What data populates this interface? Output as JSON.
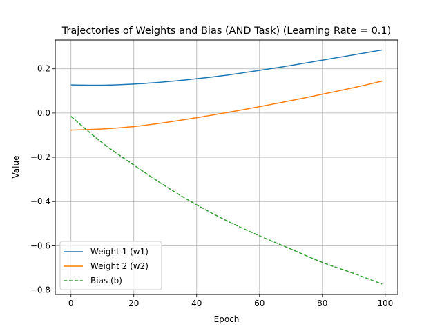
{
  "chart_data": {
    "type": "line",
    "title": "Trajectories of Weights and Bias (AND Task) (Learning Rate = 0.1)",
    "xlabel": "Epoch",
    "ylabel": "Value",
    "xlim": [
      -5,
      104
    ],
    "ylim": [
      -0.82,
      0.33
    ],
    "xticks": [
      0,
      20,
      40,
      60,
      80,
      100
    ],
    "xtick_labels": [
      "0",
      "20",
      "40",
      "60",
      "80",
      "100"
    ],
    "yticks": [
      -0.8,
      -0.6,
      -0.4,
      -0.2,
      0.0,
      0.2
    ],
    "ytick_labels": [
      "−0.8",
      "−0.6",
      "−0.4",
      "−0.2",
      "0.0",
      "0.2"
    ],
    "grid": true,
    "legend_position": "lower-left",
    "x": [
      0,
      10,
      20,
      30,
      40,
      50,
      60,
      70,
      80,
      90,
      99
    ],
    "series": [
      {
        "name": "Weight 1 (w1)",
        "color": "#1f77b4",
        "linestyle": "solid",
        "values": [
          0.127,
          0.126,
          0.131,
          0.141,
          0.155,
          0.172,
          0.193,
          0.215,
          0.239,
          0.263,
          0.285
        ]
      },
      {
        "name": "Weight 2 (w2)",
        "color": "#ff7f0e",
        "linestyle": "solid",
        "values": [
          -0.077,
          -0.072,
          -0.061,
          -0.043,
          -0.021,
          0.003,
          0.029,
          0.056,
          0.085,
          0.115,
          0.144
        ]
      },
      {
        "name": "Bias (b)",
        "color": "#2ca02c",
        "linestyle": "dashed",
        "values": [
          -0.015,
          -0.135,
          -0.235,
          -0.33,
          -0.415,
          -0.49,
          -0.555,
          -0.615,
          -0.675,
          -0.725,
          -0.773
        ]
      }
    ]
  }
}
